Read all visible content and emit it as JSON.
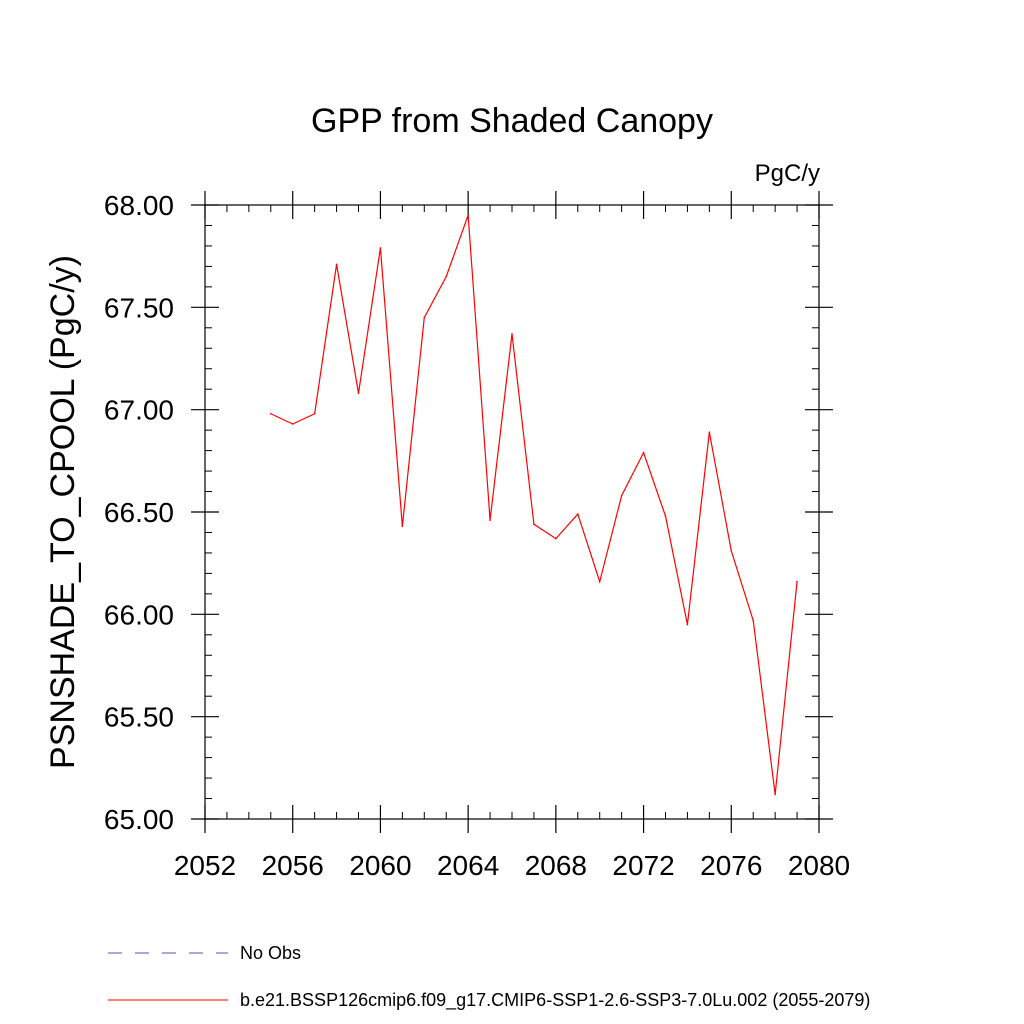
{
  "chart_data": {
    "type": "line",
    "title": "GPP from Shaded Canopy",
    "units_label": "PgC/y",
    "xlabel": "",
    "ylabel": "PSNSHADE_TO_CPOOL  (PgC/y)",
    "xlim": [
      2052,
      2080
    ],
    "ylim": [
      65.0,
      68.0
    ],
    "x_ticks": [
      2052,
      2056,
      2060,
      2064,
      2068,
      2072,
      2076,
      2080
    ],
    "x_tick_labels": [
      "2052",
      "2056",
      "2060",
      "2064",
      "2068",
      "2072",
      "2076",
      "2080"
    ],
    "y_ticks": [
      65.0,
      65.5,
      66.0,
      66.5,
      67.0,
      67.5,
      68.0
    ],
    "y_tick_labels": [
      "65.00",
      "65.50",
      "66.00",
      "66.50",
      "67.00",
      "67.50",
      "68.00"
    ],
    "x_minor_step": 1,
    "y_minor_step": 0.1,
    "series": [
      {
        "name": "b.e21.BSSP126cmip6.f09_g17.CMIP6-SSP1-2.6-SSP3-7.0Lu.002 (2055-2079)",
        "color": "#ff0000",
        "x": [
          2055,
          2056,
          2057,
          2058,
          2059,
          2060,
          2061,
          2062,
          2063,
          2064,
          2065,
          2066,
          2067,
          2068,
          2069,
          2070,
          2071,
          2072,
          2073,
          2074,
          2075,
          2076,
          2077,
          2078,
          2079
        ],
        "values": [
          66.98,
          66.93,
          66.98,
          67.71,
          67.08,
          67.79,
          66.43,
          67.45,
          67.65,
          67.95,
          66.46,
          67.37,
          66.44,
          66.37,
          66.49,
          66.16,
          66.58,
          66.79,
          66.48,
          65.95,
          66.89,
          66.31,
          65.97,
          65.12,
          66.16
        ]
      }
    ],
    "legend": [
      {
        "label": "No Obs",
        "color": "#5a4fb8",
        "style": "dashed"
      },
      {
        "label": "b.e21.BSSP126cmip6.f09_g17.CMIP6-SSP1-2.6-SSP3-7.0Lu.002 (2055-2079)",
        "color": "#ff0000",
        "style": "solid"
      }
    ]
  }
}
